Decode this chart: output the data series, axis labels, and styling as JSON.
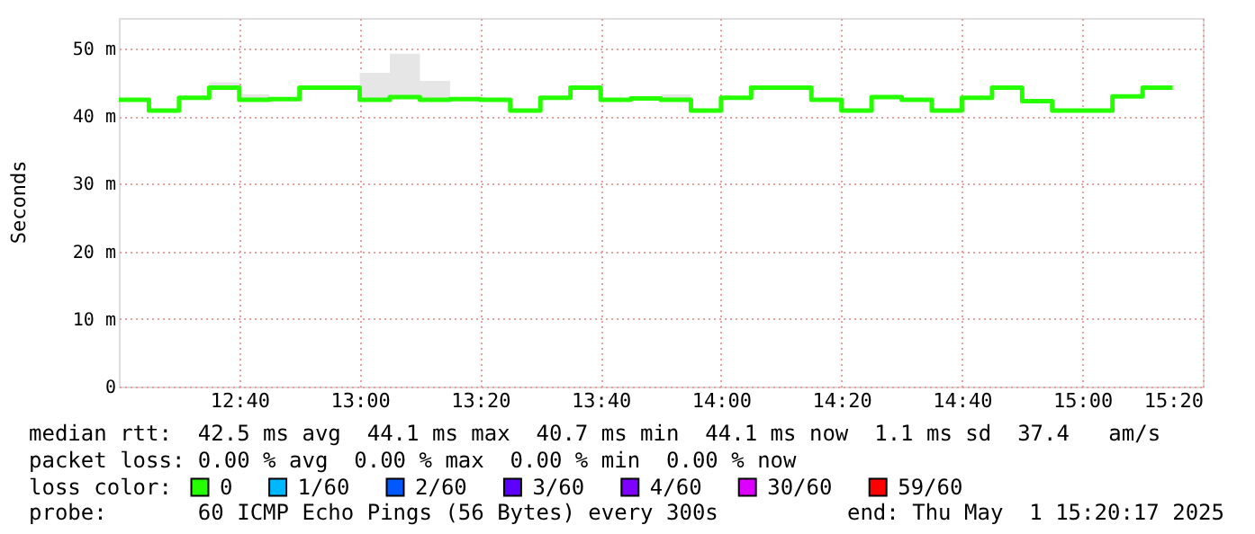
{
  "chart_data": {
    "type": "step",
    "ylabel": "Seconds",
    "x": [
      "2025-05-01T12:20",
      "2025-05-01T12:25",
      "2025-05-01T12:30",
      "2025-05-01T12:35",
      "2025-05-01T12:40",
      "2025-05-01T12:45",
      "2025-05-01T12:50",
      "2025-05-01T12:55",
      "2025-05-01T13:00",
      "2025-05-01T13:05",
      "2025-05-01T13:10",
      "2025-05-01T13:15",
      "2025-05-01T13:20",
      "2025-05-01T13:25",
      "2025-05-01T13:30",
      "2025-05-01T13:35",
      "2025-05-01T13:40",
      "2025-05-01T13:45",
      "2025-05-01T13:50",
      "2025-05-01T13:55",
      "2025-05-01T14:00",
      "2025-05-01T14:05",
      "2025-05-01T14:10",
      "2025-05-01T14:15",
      "2025-05-01T14:20",
      "2025-05-01T14:25",
      "2025-05-01T14:30",
      "2025-05-01T14:35",
      "2025-05-01T14:40",
      "2025-05-01T14:45",
      "2025-05-01T14:50",
      "2025-05-01T14:55",
      "2025-05-01T15:00",
      "2025-05-01T15:05",
      "2025-05-01T15:10",
      "2025-05-01T15:15"
    ],
    "series": [
      {
        "name": "0",
        "color": "#26ff00",
        "values": [
          42.4,
          40.8,
          42.7,
          44.2,
          42.4,
          42.5,
          44.2,
          44.2,
          42.4,
          42.8,
          42.4,
          42.5,
          42.4,
          40.8,
          42.7,
          44.2,
          42.4,
          42.6,
          42.4,
          40.8,
          42.7,
          44.2,
          44.2,
          42.4,
          40.8,
          42.8,
          42.4,
          40.8,
          42.7,
          44.2,
          42.2,
          40.8,
          40.8,
          42.9,
          44.2,
          44.2
        ],
        "lower": [
          42.4,
          40.8,
          42.7,
          44.2,
          42.4,
          42.5,
          44.2,
          44.2,
          42.4,
          42.8,
          42.4,
          42.5,
          42.4,
          40.8,
          42.7,
          44.2,
          42.4,
          42.6,
          42.4,
          40.8,
          42.7,
          44.2,
          44.2,
          42.4,
          40.8,
          42.8,
          42.4,
          40.8,
          42.7,
          44.2,
          42.2,
          40.8,
          40.8,
          42.9,
          44.2,
          44.2
        ],
        "upper": [
          42.4,
          40.8,
          42.7,
          45.0,
          43.2,
          42.5,
          44.2,
          44.2,
          46.4,
          49.2,
          45.2,
          42.5,
          42.4,
          40.8,
          42.7,
          44.2,
          42.4,
          42.6,
          43.2,
          40.8,
          42.7,
          44.2,
          44.2,
          42.4,
          40.8,
          42.8,
          42.4,
          40.8,
          42.7,
          44.2,
          42.2,
          40.8,
          40.8,
          42.9,
          44.2,
          44.2
        ]
      },
      {
        "name": "1/60",
        "color": "#00b8ff",
        "values": [
          null,
          null,
          null,
          null,
          null,
          null,
          null,
          null,
          null,
          null,
          null,
          null,
          null,
          null,
          null,
          null,
          null,
          null,
          null,
          null,
          null,
          null,
          null,
          null,
          null,
          null,
          null,
          null,
          null,
          null,
          null,
          null,
          null,
          null,
          null,
          null
        ]
      },
      {
        "name": "2/60",
        "color": "#0059ff",
        "values": [
          null,
          null,
          null,
          null,
          null,
          null,
          null,
          null,
          null,
          null,
          null,
          null,
          null,
          null,
          null,
          null,
          null,
          null,
          null,
          null,
          null,
          null,
          null,
          null,
          null,
          null,
          null,
          null,
          null,
          null,
          null,
          null,
          null,
          null,
          null,
          null
        ]
      },
      {
        "name": "3/60",
        "color": "#5e00ff",
        "values": [
          null,
          null,
          null,
          null,
          null,
          null,
          null,
          null,
          null,
          null,
          null,
          null,
          null,
          null,
          null,
          null,
          null,
          null,
          null,
          null,
          null,
          null,
          null,
          null,
          null,
          null,
          null,
          null,
          null,
          null,
          null,
          null,
          null,
          null,
          null,
          null
        ]
      },
      {
        "name": "4/60",
        "color": "#7e00ff",
        "values": [
          null,
          null,
          null,
          null,
          null,
          null,
          null,
          null,
          null,
          null,
          null,
          null,
          null,
          null,
          null,
          null,
          null,
          null,
          null,
          null,
          null,
          null,
          null,
          null,
          null,
          null,
          null,
          null,
          null,
          null,
          null,
          null,
          null,
          null,
          null,
          null
        ]
      },
      {
        "name": "30/60",
        "color": "#dd00ff",
        "values": [
          null,
          null,
          null,
          null,
          null,
          null,
          null,
          null,
          null,
          null,
          null,
          null,
          null,
          null,
          null,
          null,
          null,
          null,
          null,
          null,
          null,
          null,
          null,
          null,
          null,
          null,
          null,
          null,
          null,
          null,
          null,
          null,
          null,
          null,
          null,
          null
        ]
      },
      {
        "name": "59/60",
        "color": "#ff0000",
        "values": [
          null,
          null,
          null,
          null,
          null,
          null,
          null,
          null,
          null,
          null,
          null,
          null,
          null,
          null,
          null,
          null,
          null,
          null,
          null,
          null,
          null,
          null,
          null,
          null,
          null,
          null,
          null,
          null,
          null,
          null,
          null,
          null,
          null,
          null,
          null,
          null
        ]
      }
    ],
    "legend_title": "loss color:",
    "legend": "bottom",
    "xlim": [
      "2025-05-01T12:20",
      "2025-05-01T15:20"
    ],
    "xticks": [
      {
        "value": "2025-05-01T12:40",
        "label": "12:40"
      },
      {
        "value": "2025-05-01T13:00",
        "label": "13:00"
      },
      {
        "value": "2025-05-01T13:20",
        "label": "13:20"
      },
      {
        "value": "2025-05-01T13:40",
        "label": "13:40"
      },
      {
        "value": "2025-05-01T14:00",
        "label": "14:00"
      },
      {
        "value": "2025-05-01T14:20",
        "label": "14:20"
      },
      {
        "value": "2025-05-01T14:40",
        "label": "14:40"
      },
      {
        "value": "2025-05-01T15:00",
        "label": "15:00"
      },
      {
        "value": "2025-05-01T15:20",
        "label": "15:20"
      }
    ],
    "ylim": [
      0,
      54.5
    ],
    "yticks": [
      0,
      {
        "value": 10,
        "label": "10 m"
      },
      {
        "value": 20,
        "label": "20 m"
      },
      {
        "value": 30,
        "label": "30 m"
      },
      {
        "value": 40,
        "label": "40 m"
      },
      {
        "value": 50,
        "label": "50 m"
      }
    ],
    "grid": true,
    "line_style": "solid",
    "annotations": [
      "median rtt:  42.5 ms avg  44.1 ms max  40.7 ms min  44.1 ms now  1.1 ms sd  37.4   am/s",
      "packet loss: 0.00 % avg  0.00 % max  0.00 % min  0.00 % now",
      "probe:       60 ICMP Echo Pings (56 Bytes) every 300s",
      "end: Thu May  1 15:20:17 2025"
    ]
  }
}
